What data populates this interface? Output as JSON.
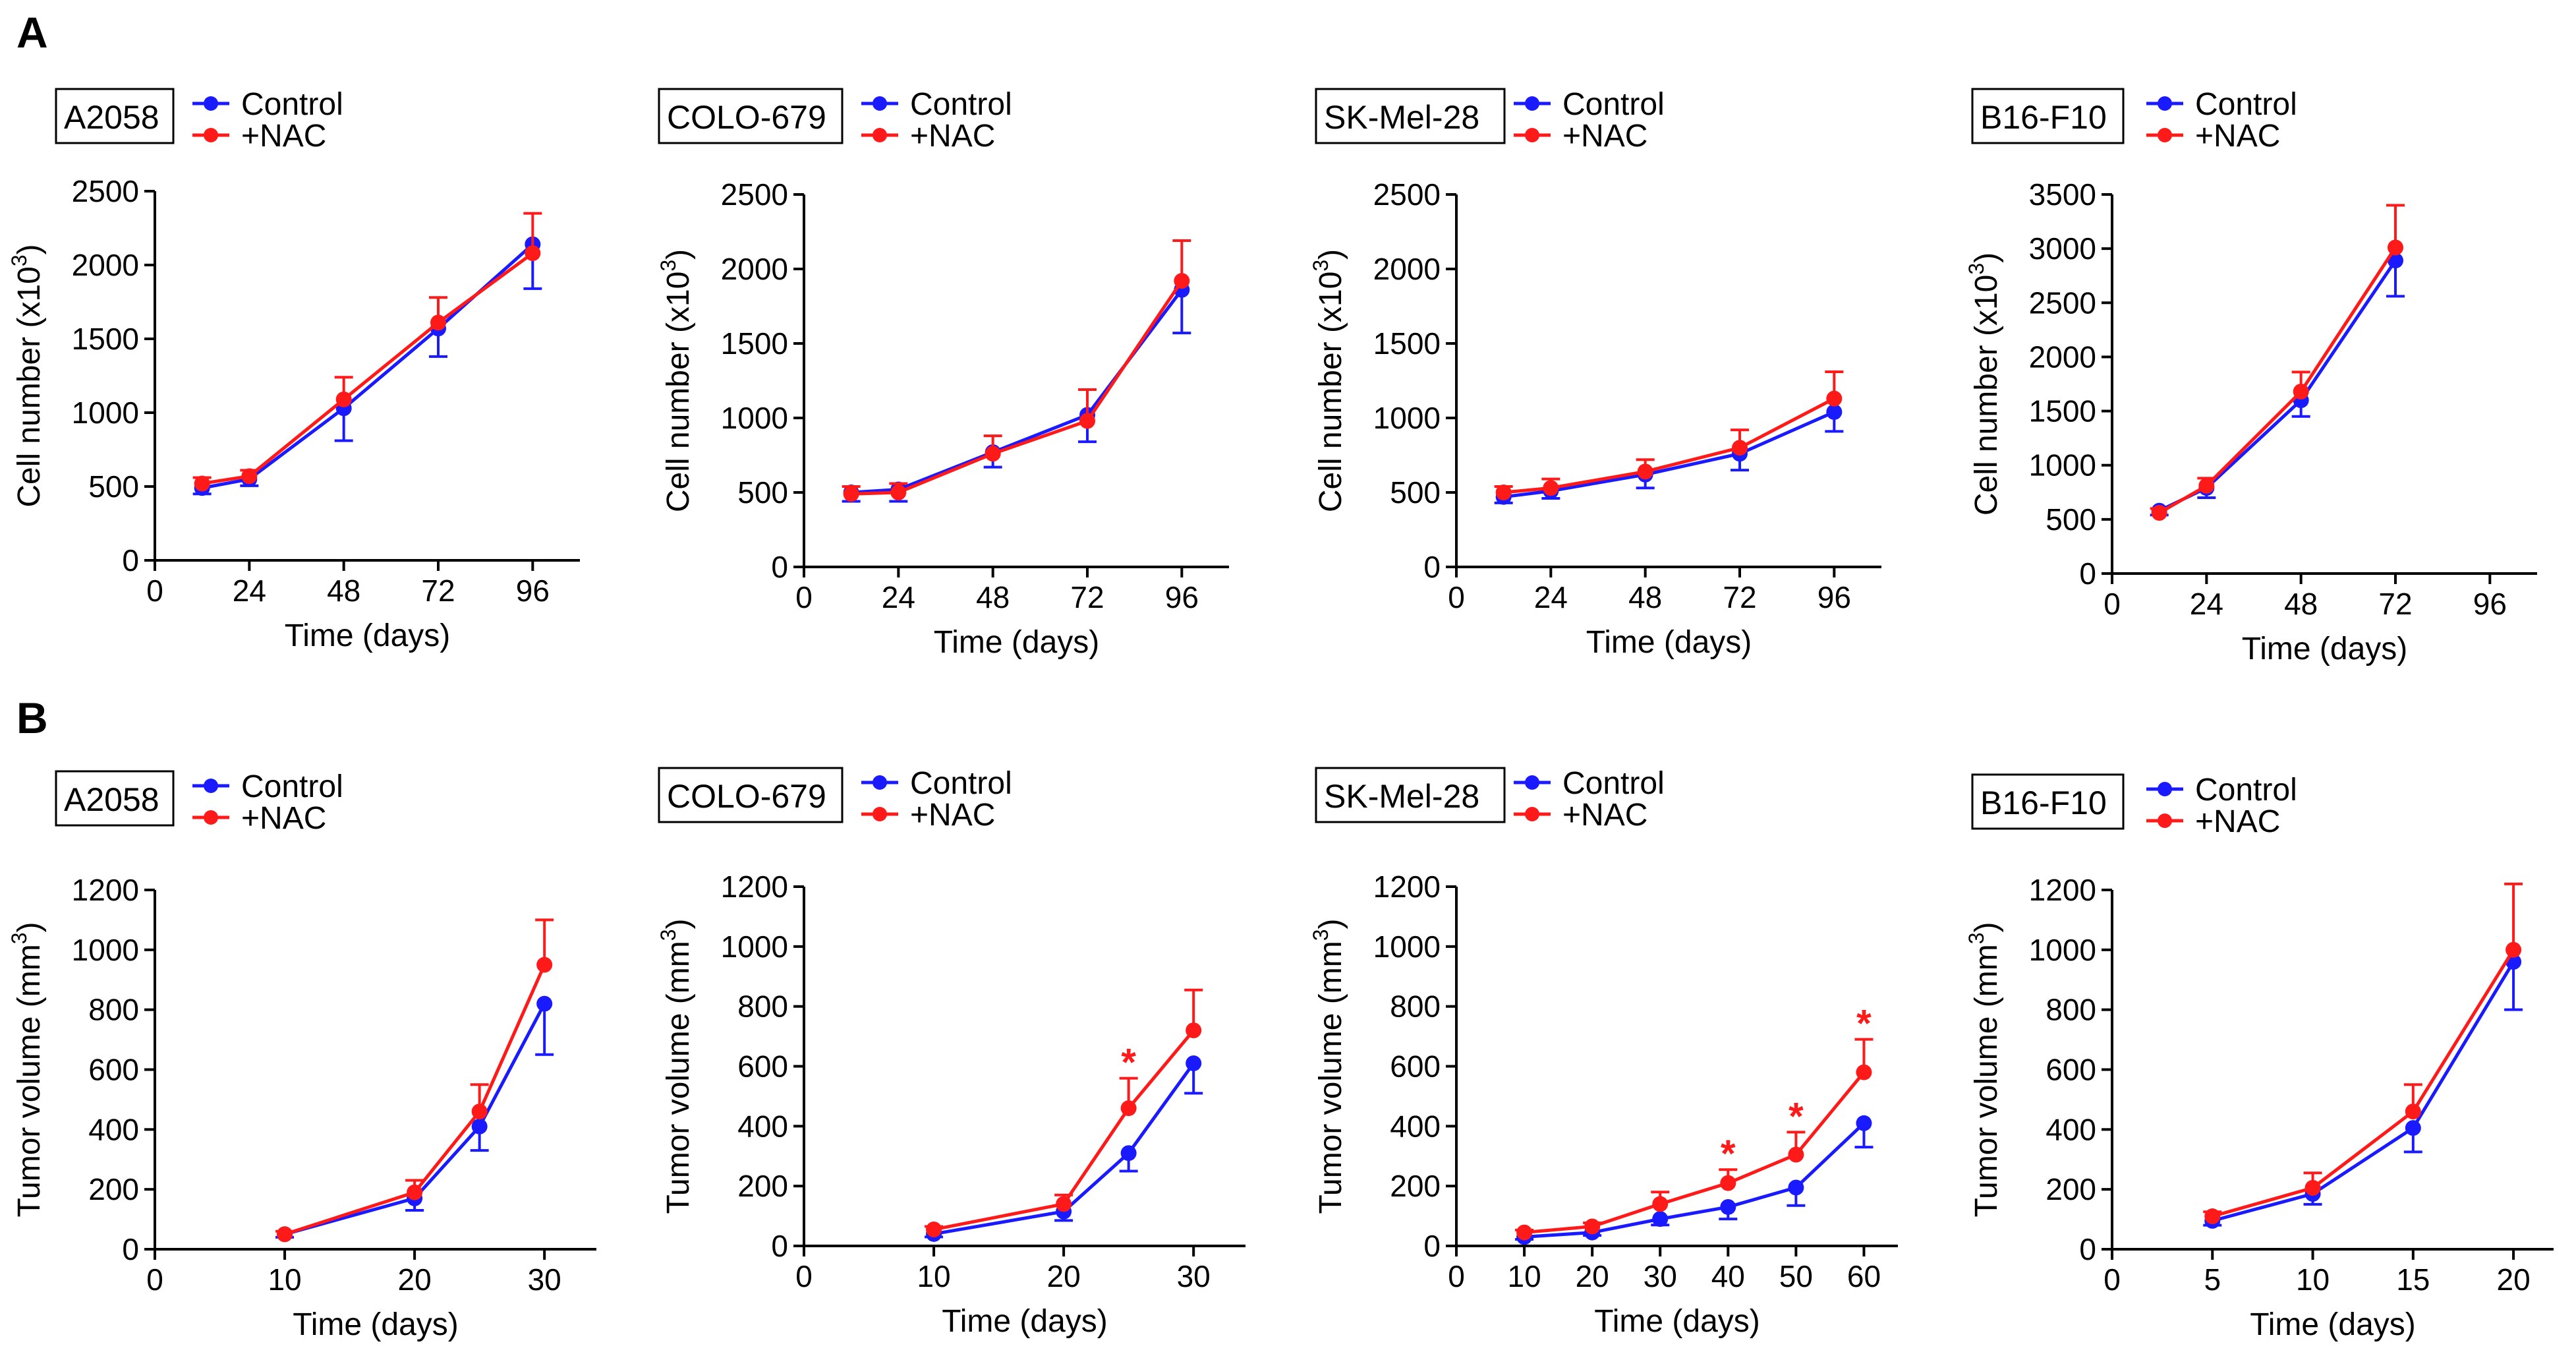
{
  "figure": {
    "colors": {
      "control": "#1a1aff",
      "nac": "#ff1a1a",
      "axis": "#000000"
    }
  },
  "panel_labels": [
    "A",
    "B"
  ],
  "legend": {
    "control": "Control",
    "nac": "+NAC"
  },
  "significance_marker": "*",
  "chart_data": [
    {
      "id": "A-A2058",
      "row": "A",
      "type": "line",
      "cell_line": "A2058",
      "xlabel": "Time (days)",
      "ylabel": "Cell number (x10",
      "ylabel_sup": "3",
      "ylabel_end": ")",
      "xlim": [
        0,
        108
      ],
      "ylim": [
        0,
        2500
      ],
      "xticks": [
        0,
        24,
        48,
        72,
        96
      ],
      "yticks": [
        0,
        500,
        1000,
        1500,
        2000,
        2500
      ],
      "series": [
        {
          "name": "Control",
          "color": "#1a1aff",
          "x": [
            12,
            24,
            48,
            72,
            96
          ],
          "y": [
            490,
            550,
            1030,
            1570,
            2140
          ],
          "err": [
            40,
            45,
            220,
            190,
            300
          ]
        },
        {
          "name": "+NAC",
          "color": "#ff1a1a",
          "x": [
            12,
            24,
            48,
            72,
            96
          ],
          "y": [
            520,
            570,
            1090,
            1610,
            2080
          ],
          "err": [
            40,
            40,
            150,
            170,
            270
          ]
        }
      ],
      "significance": []
    },
    {
      "id": "A-COLO-679",
      "row": "A",
      "type": "line",
      "cell_line": "COLO-679",
      "xlabel": "Time (days)",
      "ylabel": "Cell number (x10",
      "ylabel_sup": "3",
      "ylabel_end": ")",
      "xlim": [
        0,
        108
      ],
      "ylim": [
        0,
        2500
      ],
      "xticks": [
        0,
        24,
        48,
        72,
        96
      ],
      "yticks": [
        0,
        500,
        1000,
        1500,
        2000,
        2500
      ],
      "series": [
        {
          "name": "Control",
          "color": "#1a1aff",
          "x": [
            12,
            24,
            48,
            72,
            96
          ],
          "y": [
            500,
            520,
            770,
            1020,
            1860
          ],
          "err": [
            60,
            80,
            100,
            180,
            290
          ]
        },
        {
          "name": "+NAC",
          "color": "#ff1a1a",
          "x": [
            12,
            24,
            48,
            72,
            96
          ],
          "y": [
            490,
            500,
            760,
            980,
            1920
          ],
          "err": [
            50,
            60,
            120,
            210,
            270
          ]
        }
      ],
      "significance": []
    },
    {
      "id": "A-SK-Mel-28",
      "row": "A",
      "type": "line",
      "cell_line": "SK-Mel-28",
      "xlabel": "Time (days)",
      "ylabel": "Cell number (x10",
      "ylabel_sup": "3",
      "ylabel_end": ")",
      "xlim": [
        0,
        108
      ],
      "ylim": [
        0,
        2500
      ],
      "xticks": [
        0,
        24,
        48,
        72,
        96
      ],
      "yticks": [
        0,
        500,
        1000,
        1500,
        2000,
        2500
      ],
      "series": [
        {
          "name": "Control",
          "color": "#1a1aff",
          "x": [
            12,
            24,
            48,
            72,
            96
          ],
          "y": [
            470,
            510,
            620,
            760,
            1040
          ],
          "err": [
            40,
            50,
            90,
            110,
            130
          ]
        },
        {
          "name": "+NAC",
          "color": "#ff1a1a",
          "x": [
            12,
            24,
            48,
            72,
            96
          ],
          "y": [
            500,
            530,
            640,
            800,
            1130
          ],
          "err": [
            40,
            60,
            80,
            120,
            180
          ]
        }
      ],
      "significance": []
    },
    {
      "id": "A-B16-F10",
      "row": "A",
      "type": "line",
      "cell_line": "B16-F10",
      "xlabel": "Time (days)",
      "ylabel": "Cell number (x10",
      "ylabel_sup": "3",
      "ylabel_end": ")",
      "xlim": [
        0,
        108
      ],
      "ylim": [
        0,
        3500
      ],
      "xticks": [
        0,
        24,
        48,
        72,
        96
      ],
      "yticks": [
        0,
        500,
        1000,
        1500,
        2000,
        2500,
        3000,
        3500
      ],
      "series": [
        {
          "name": "Control",
          "color": "#1a1aff",
          "x": [
            12,
            24,
            48,
            72
          ],
          "y": [
            580,
            790,
            1600,
            2890
          ],
          "err": [
            40,
            90,
            150,
            330
          ]
        },
        {
          "name": "+NAC",
          "color": "#ff1a1a",
          "x": [
            12,
            24,
            48,
            72
          ],
          "y": [
            560,
            810,
            1680,
            3010
          ],
          "err": [
            40,
            70,
            180,
            390
          ]
        }
      ],
      "significance": []
    },
    {
      "id": "B-A2058",
      "row": "B",
      "type": "line",
      "cell_line": "A2058",
      "xlabel": "Time (days)",
      "ylabel": "Tumor volume (mm",
      "ylabel_sup": "3",
      "ylabel_end": ")",
      "xlim": [
        0,
        34
      ],
      "ylim": [
        0,
        1200
      ],
      "xticks": [
        0,
        10,
        20,
        30
      ],
      "yticks": [
        0,
        200,
        400,
        600,
        800,
        1000,
        1200
      ],
      "series": [
        {
          "name": "Control",
          "color": "#1a1aff",
          "x": [
            10,
            20,
            25,
            30
          ],
          "y": [
            50,
            170,
            410,
            820
          ],
          "err": [
            10,
            40,
            80,
            170
          ]
        },
        {
          "name": "+NAC",
          "color": "#ff1a1a",
          "x": [
            10,
            20,
            25,
            30
          ],
          "y": [
            50,
            190,
            460,
            950
          ],
          "err": [
            10,
            40,
            90,
            150
          ]
        }
      ],
      "significance": []
    },
    {
      "id": "B-COLO-679",
      "row": "B",
      "type": "line",
      "cell_line": "COLO-679",
      "xlabel": "Time (days)",
      "ylabel": "Tumor volume (mm",
      "ylabel_sup": "3",
      "ylabel_end": ")",
      "xlim": [
        0,
        34
      ],
      "ylim": [
        0,
        1200
      ],
      "xticks": [
        0,
        10,
        20,
        30
      ],
      "yticks": [
        0,
        200,
        400,
        600,
        800,
        1000,
        1200
      ],
      "series": [
        {
          "name": "Control",
          "color": "#1a1aff",
          "x": [
            10,
            20,
            25,
            30
          ],
          "y": [
            40,
            115,
            310,
            610
          ],
          "err": [
            10,
            30,
            60,
            100
          ]
        },
        {
          "name": "+NAC",
          "color": "#ff1a1a",
          "x": [
            10,
            20,
            25,
            30
          ],
          "y": [
            55,
            140,
            460,
            720
          ],
          "err": [
            10,
            30,
            100,
            135
          ]
        }
      ],
      "significance": [
        25
      ]
    },
    {
      "id": "B-SK-Mel-28",
      "row": "B",
      "type": "line",
      "cell_line": "SK-Mel-28",
      "xlabel": "Time (days)",
      "ylabel": "Tumor volume (mm",
      "ylabel_sup": "3",
      "ylabel_end": ")",
      "xlim": [
        0,
        65
      ],
      "ylim": [
        0,
        1200
      ],
      "xticks": [
        0,
        10,
        20,
        30,
        40,
        50,
        60
      ],
      "yticks": [
        0,
        200,
        400,
        600,
        800,
        1000,
        1200
      ],
      "series": [
        {
          "name": "Control",
          "color": "#1a1aff",
          "x": [
            10,
            20,
            30,
            40,
            50,
            60
          ],
          "y": [
            30,
            45,
            90,
            130,
            195,
            410
          ],
          "err": [
            8,
            10,
            20,
            40,
            60,
            80
          ]
        },
        {
          "name": "+NAC",
          "color": "#ff1a1a",
          "x": [
            10,
            20,
            30,
            40,
            50,
            60
          ],
          "y": [
            45,
            65,
            140,
            210,
            305,
            580
          ],
          "err": [
            8,
            12,
            40,
            45,
            75,
            110
          ]
        }
      ],
      "significance": [
        40,
        50,
        60
      ]
    },
    {
      "id": "B-B16-F10",
      "row": "B",
      "type": "line",
      "cell_line": "B16-F10",
      "xlabel": "Time (days)",
      "ylabel": "Tumor volume (mm",
      "ylabel_sup": "3",
      "ylabel_end": ")",
      "xlim": [
        0,
        22
      ],
      "ylim": [
        0,
        1200
      ],
      "xticks": [
        0,
        5,
        10,
        15,
        20
      ],
      "yticks": [
        0,
        200,
        400,
        600,
        800,
        1000,
        1200
      ],
      "series": [
        {
          "name": "Control",
          "color": "#1a1aff",
          "x": [
            5,
            10,
            15,
            20
          ],
          "y": [
            95,
            185,
            405,
            960
          ],
          "err": [
            15,
            35,
            80,
            160
          ]
        },
        {
          "name": "+NAC",
          "color": "#ff1a1a",
          "x": [
            5,
            10,
            15,
            20
          ],
          "y": [
            110,
            205,
            460,
            1000
          ],
          "err": [
            15,
            50,
            90,
            220
          ]
        }
      ],
      "significance": []
    }
  ]
}
